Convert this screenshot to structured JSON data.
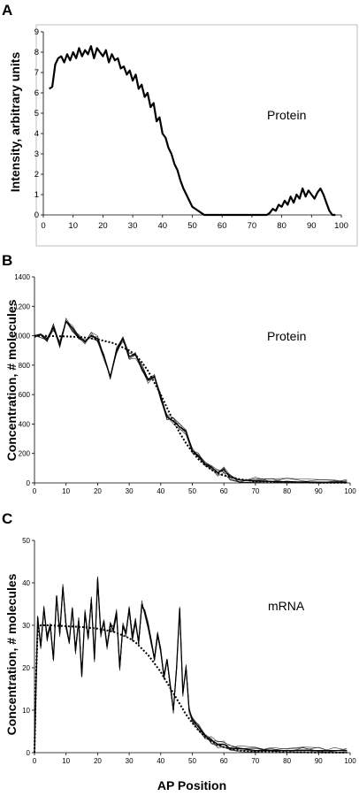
{
  "figure": {
    "xlabel": "AP Position"
  },
  "chart_data": [
    {
      "panel": "A",
      "type": "line",
      "ylabel": "Intensity, arbitrary units",
      "annotation": "Protein",
      "xlim": [
        0,
        100
      ],
      "ylim": [
        0,
        9
      ],
      "xticks": [
        0,
        10,
        20,
        30,
        40,
        50,
        60,
        70,
        80,
        90,
        100
      ],
      "yticks": [
        0,
        1,
        2,
        3,
        4,
        5,
        6,
        7,
        8,
        9
      ],
      "grid": false,
      "series": [
        {
          "style": "thick-noisy",
          "x": [
            2,
            3,
            4,
            5,
            6,
            7,
            8,
            9,
            10,
            11,
            12,
            13,
            14,
            15,
            16,
            17,
            18,
            19,
            20,
            21,
            22,
            23,
            24,
            25,
            26,
            27,
            28,
            29,
            30,
            31,
            32,
            33,
            34,
            35,
            36,
            37,
            38,
            39,
            40,
            41,
            42,
            43,
            44,
            45,
            46,
            47,
            48,
            49,
            50,
            51,
            52,
            53,
            54,
            55,
            56,
            60,
            65,
            70,
            75,
            76,
            77,
            78,
            79,
            80,
            81,
            82,
            83,
            84,
            85,
            86,
            87,
            88,
            89,
            90,
            91,
            92,
            93,
            94,
            95,
            96,
            97,
            98
          ],
          "values": [
            6.2,
            6.3,
            7.4,
            7.7,
            7.8,
            7.5,
            7.9,
            7.6,
            8.0,
            7.7,
            8.2,
            7.8,
            8.1,
            7.9,
            8.3,
            7.7,
            8.2,
            8.0,
            7.8,
            8.1,
            7.5,
            7.9,
            7.6,
            7.7,
            7.2,
            7.3,
            6.9,
            7.1,
            6.6,
            6.9,
            6.2,
            6.4,
            5.8,
            6.0,
            5.3,
            5.5,
            4.6,
            4.8,
            4.0,
            3.8,
            3.3,
            3.0,
            2.5,
            2.2,
            1.7,
            1.3,
            1.0,
            0.7,
            0.4,
            0.3,
            0.2,
            0.1,
            0.0,
            0.0,
            0.0,
            0.0,
            0.0,
            0.0,
            0.0,
            0.1,
            0.3,
            0.2,
            0.5,
            0.4,
            0.7,
            0.5,
            0.9,
            0.6,
            1.0,
            0.8,
            1.3,
            0.9,
            1.2,
            1.0,
            0.8,
            1.1,
            1.3,
            1.0,
            0.6,
            0.2,
            0.0,
            0.0
          ]
        }
      ]
    },
    {
      "panel": "B",
      "type": "line",
      "ylabel": "Concentration, # molecules",
      "annotation": "Protein",
      "xlim": [
        0,
        100
      ],
      "ylim": [
        0,
        1400
      ],
      "xticks": [
        0,
        10,
        20,
        30,
        40,
        50,
        60,
        70,
        80,
        90,
        100
      ],
      "yticks": [
        0,
        200,
        400,
        600,
        800,
        1000,
        1200,
        1400
      ],
      "grid": false,
      "series": [
        {
          "style": "noisy-bundle",
          "x": [
            0,
            2,
            4,
            6,
            8,
            10,
            12,
            14,
            16,
            18,
            20,
            22,
            24,
            26,
            28,
            30,
            32,
            34,
            36,
            38,
            40,
            42,
            44,
            46,
            48,
            50,
            52,
            54,
            56,
            58,
            60,
            62,
            65,
            70,
            75,
            80,
            85,
            90,
            95,
            99
          ],
          "values": [
            1000,
            1010,
            980,
            1060,
            940,
            1100,
            1050,
            990,
            960,
            1000,
            980,
            860,
            720,
            900,
            980,
            860,
            870,
            780,
            700,
            720,
            580,
            450,
            420,
            380,
            350,
            220,
            180,
            130,
            110,
            70,
            90,
            40,
            20,
            15,
            10,
            8,
            6,
            5,
            4,
            3
          ]
        },
        {
          "style": "dotted-fit",
          "x": [
            0,
            5,
            10,
            15,
            20,
            25,
            30,
            32,
            34,
            36,
            38,
            40,
            42,
            44,
            46,
            48,
            50,
            52,
            54,
            56,
            58,
            60,
            65,
            70,
            80,
            90,
            99
          ],
          "values": [
            1000,
            998,
            995,
            990,
            975,
            950,
            900,
            870,
            820,
            760,
            680,
            600,
            510,
            420,
            340,
            270,
            210,
            160,
            120,
            90,
            65,
            50,
            25,
            12,
            4,
            2,
            1
          ]
        }
      ]
    },
    {
      "panel": "C",
      "type": "line",
      "ylabel": "Concentration, # molecules",
      "annotation": "mRNA",
      "xlim": [
        0,
        100
      ],
      "ylim": [
        0,
        50
      ],
      "xticks": [
        0,
        10,
        20,
        30,
        40,
        50,
        60,
        70,
        80,
        90,
        100
      ],
      "yticks": [
        0,
        10,
        20,
        30,
        40,
        50
      ],
      "grid": false,
      "series": [
        {
          "style": "noisy-bundle",
          "x": [
            0,
            1,
            2,
            3,
            4,
            5,
            6,
            7,
            8,
            9,
            10,
            11,
            12,
            13,
            14,
            15,
            16,
            17,
            18,
            19,
            20,
            21,
            22,
            23,
            24,
            25,
            26,
            27,
            28,
            29,
            30,
            31,
            32,
            33,
            34,
            35,
            36,
            37,
            38,
            39,
            40,
            41,
            42,
            43,
            44,
            45,
            46,
            47,
            48,
            49,
            50,
            52,
            54,
            56,
            58,
            60,
            62,
            65,
            70,
            75,
            80,
            85,
            90,
            95,
            99
          ],
          "values": [
            0,
            32,
            25,
            34,
            27,
            30,
            22,
            37,
            28,
            39,
            30,
            26,
            34,
            24,
            31,
            18,
            33,
            27,
            36,
            22,
            41,
            28,
            31,
            25,
            30,
            29,
            33,
            20,
            30,
            28,
            34,
            27,
            31,
            26,
            35,
            33,
            30,
            26,
            22,
            28,
            24,
            18,
            22,
            16,
            10,
            20,
            34,
            14,
            20,
            10,
            8,
            6,
            4,
            3,
            2,
            2,
            1,
            1,
            0.5,
            0.5,
            0.5,
            0.5,
            0.5,
            0.5,
            0.5
          ]
        },
        {
          "style": "dotted-fit",
          "x": [
            0,
            0.5,
            1,
            2,
            5,
            10,
            15,
            20,
            25,
            30,
            32,
            34,
            36,
            38,
            40,
            42,
            44,
            46,
            48,
            50,
            52,
            54,
            56,
            58,
            60,
            65,
            70,
            80,
            90,
            99
          ],
          "values": [
            0,
            18,
            29,
            30,
            30,
            29.8,
            29.6,
            29.2,
            28.5,
            27,
            26,
            24.5,
            23,
            21,
            19,
            16.5,
            14,
            11.5,
            9,
            7,
            5.2,
            3.8,
            2.7,
            1.9,
            1.3,
            0.5,
            0.2,
            0.1,
            0.05,
            0.02
          ]
        }
      ]
    }
  ]
}
